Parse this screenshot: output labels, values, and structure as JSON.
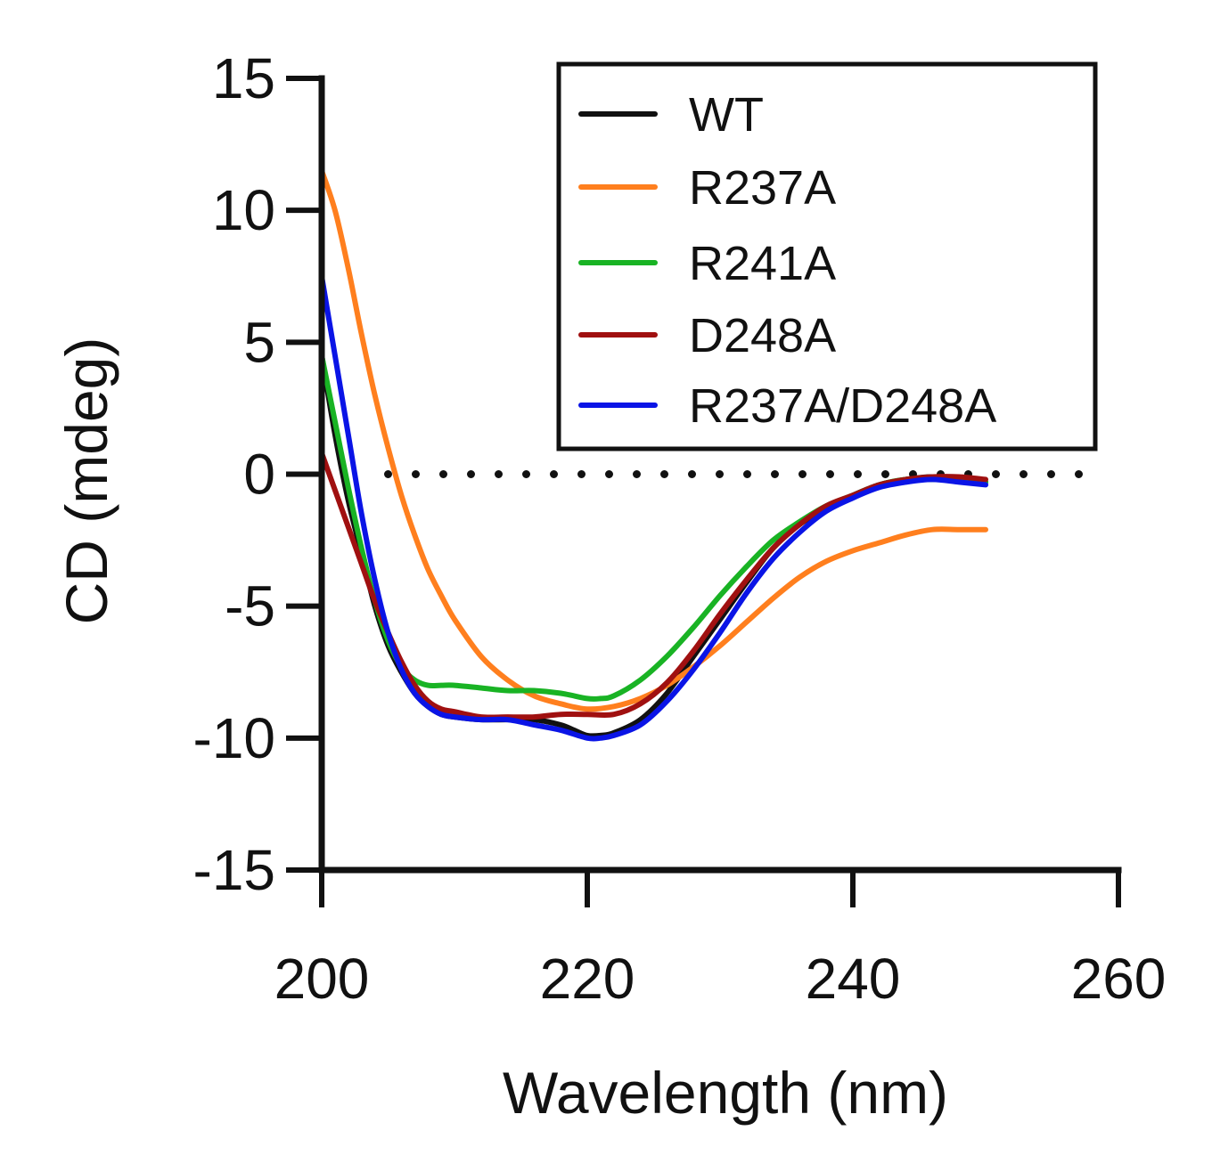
{
  "chart_data": {
    "type": "line",
    "title": "",
    "xlabel": "Wavelength (nm)",
    "ylabel": "CD (mdeg)",
    "xlim": [
      200,
      260
    ],
    "ylim": [
      -15,
      15
    ],
    "xticks": [
      200,
      220,
      240,
      260
    ],
    "yticks": [
      15,
      10,
      5,
      0,
      -5,
      -10,
      -15
    ],
    "xtick_labels": [
      "200",
      "220",
      "240",
      "260"
    ],
    "ytick_labels": [
      "15",
      "10",
      "5",
      "0",
      "-5",
      "-10",
      "-15"
    ],
    "reference_line": {
      "y": 0,
      "x_start": 205,
      "x_end": 259,
      "style": "dotted",
      "color": "#111111"
    },
    "legend_position": "top-right",
    "grid": false,
    "series": [
      {
        "name": "WT",
        "color": "#111111",
        "x": [
          200,
          201,
          202,
          203,
          204,
          205,
          206,
          207,
          208,
          209,
          210,
          212,
          214,
          216,
          218,
          219,
          220,
          221,
          222,
          224,
          226,
          228,
          230,
          232,
          234,
          236,
          238,
          240,
          242,
          244,
          246,
          248,
          250
        ],
        "y": [
          4.5,
          1.5,
          -1.0,
          -3.0,
          -5.0,
          -6.5,
          -7.5,
          -8.3,
          -8.8,
          -9.1,
          -9.2,
          -9.3,
          -9.3,
          -9.3,
          -9.5,
          -9.7,
          -9.9,
          -9.9,
          -9.8,
          -9.3,
          -8.3,
          -6.9,
          -5.5,
          -4.1,
          -2.8,
          -1.9,
          -1.3,
          -0.8,
          -0.4,
          -0.2,
          -0.1,
          -0.2,
          -0.3
        ]
      },
      {
        "name": "R237A",
        "color": "#ff7f1e",
        "x": [
          200,
          201,
          202,
          203,
          204,
          205,
          206,
          207,
          208,
          209,
          210,
          212,
          214,
          216,
          218,
          220,
          222,
          224,
          226,
          228,
          230,
          232,
          234,
          236,
          238,
          240,
          242,
          244,
          246,
          248,
          250
        ],
        "y": [
          11.5,
          10.0,
          7.8,
          5.3,
          3.0,
          1.0,
          -0.8,
          -2.3,
          -3.6,
          -4.6,
          -5.5,
          -6.9,
          -7.8,
          -8.4,
          -8.7,
          -8.9,
          -8.8,
          -8.5,
          -8.0,
          -7.3,
          -6.5,
          -5.6,
          -4.7,
          -3.9,
          -3.3,
          -2.9,
          -2.6,
          -2.3,
          -2.1,
          -2.1,
          -2.1
        ]
      },
      {
        "name": "R241A",
        "color": "#19b324",
        "x": [
          200,
          201,
          202,
          203,
          204,
          205,
          206,
          207,
          208,
          209,
          210,
          212,
          214,
          216,
          218,
          220,
          221,
          222,
          224,
          226,
          228,
          230,
          232,
          234,
          236,
          238,
          240,
          242,
          244,
          246,
          248,
          250
        ],
        "y": [
          4.5,
          2.0,
          -0.5,
          -2.8,
          -4.8,
          -6.3,
          -7.3,
          -7.8,
          -8.0,
          -8.0,
          -8.0,
          -8.1,
          -8.2,
          -8.2,
          -8.3,
          -8.5,
          -8.5,
          -8.4,
          -7.8,
          -6.9,
          -5.8,
          -4.6,
          -3.5,
          -2.5,
          -1.8,
          -1.2,
          -0.8,
          -0.4,
          -0.2,
          -0.2,
          -0.2,
          -0.3
        ]
      },
      {
        "name": "D248A",
        "color": "#a01010",
        "x": [
          200,
          201,
          202,
          203,
          204,
          205,
          206,
          207,
          208,
          209,
          210,
          212,
          214,
          216,
          218,
          220,
          222,
          224,
          226,
          228,
          230,
          232,
          234,
          236,
          238,
          240,
          242,
          244,
          246,
          248,
          250
        ],
        "y": [
          0.8,
          -0.6,
          -2.0,
          -3.4,
          -4.8,
          -6.0,
          -7.1,
          -8.0,
          -8.6,
          -8.9,
          -9.0,
          -9.2,
          -9.2,
          -9.2,
          -9.1,
          -9.1,
          -9.1,
          -8.7,
          -7.9,
          -6.7,
          -5.3,
          -4.0,
          -2.8,
          -1.9,
          -1.2,
          -0.8,
          -0.4,
          -0.2,
          -0.1,
          -0.1,
          -0.2
        ]
      },
      {
        "name": "R237A/D248A",
        "color": "#0a14e6",
        "x": [
          200,
          201,
          202,
          203,
          204,
          205,
          206,
          207,
          208,
          209,
          210,
          212,
          214,
          216,
          218,
          220,
          221,
          222,
          224,
          226,
          228,
          230,
          232,
          234,
          236,
          238,
          240,
          242,
          244,
          246,
          248,
          250
        ],
        "y": [
          7.5,
          4.5,
          1.5,
          -1.5,
          -4.0,
          -6.0,
          -7.4,
          -8.3,
          -8.8,
          -9.1,
          -9.2,
          -9.3,
          -9.3,
          -9.5,
          -9.7,
          -10.0,
          -10.0,
          -9.9,
          -9.5,
          -8.6,
          -7.4,
          -6.0,
          -4.5,
          -3.2,
          -2.2,
          -1.4,
          -0.9,
          -0.5,
          -0.3,
          -0.2,
          -0.3,
          -0.4
        ]
      }
    ]
  }
}
